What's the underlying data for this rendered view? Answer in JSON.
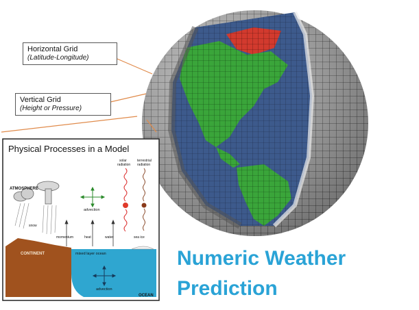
{
  "callouts": {
    "horizontal": {
      "title": "Horizontal Grid",
      "subtitle": "(Latitude-Longitude)"
    },
    "vertical": {
      "title": "Vertical Grid",
      "subtitle": "(Height or Pressure)"
    }
  },
  "inset": {
    "title": "Physical Processes in a Model",
    "labels": {
      "atmosphere": "ATMOSPHERE",
      "solar_radiation_1": "solar",
      "solar_radiation_2": "radiation",
      "terrestrial_radiation_1": "terrestrial",
      "terrestrial_radiation_2": "radiation",
      "advection_air": "advection",
      "snow": "snow",
      "momentum": "momentum",
      "heat": "heat",
      "water": "water",
      "sea_ice": "sea ice",
      "continent": "CONTINENT",
      "mixed_layer": "mixed layer ocean",
      "advection_ocean": "advection",
      "ocean": "OCEAN"
    }
  },
  "headline": {
    "line1": "Numeric Weather",
    "line2": "Prediction"
  },
  "colors": {
    "headline": "#2aa3d6",
    "land": "#3aa53a",
    "ocean_globe": "#3d5a8c",
    "shell": "#9a9a9a",
    "continent": "#a0521e",
    "ocean_inset": "#2fa6d0",
    "callout_line": "#e08a4a"
  }
}
